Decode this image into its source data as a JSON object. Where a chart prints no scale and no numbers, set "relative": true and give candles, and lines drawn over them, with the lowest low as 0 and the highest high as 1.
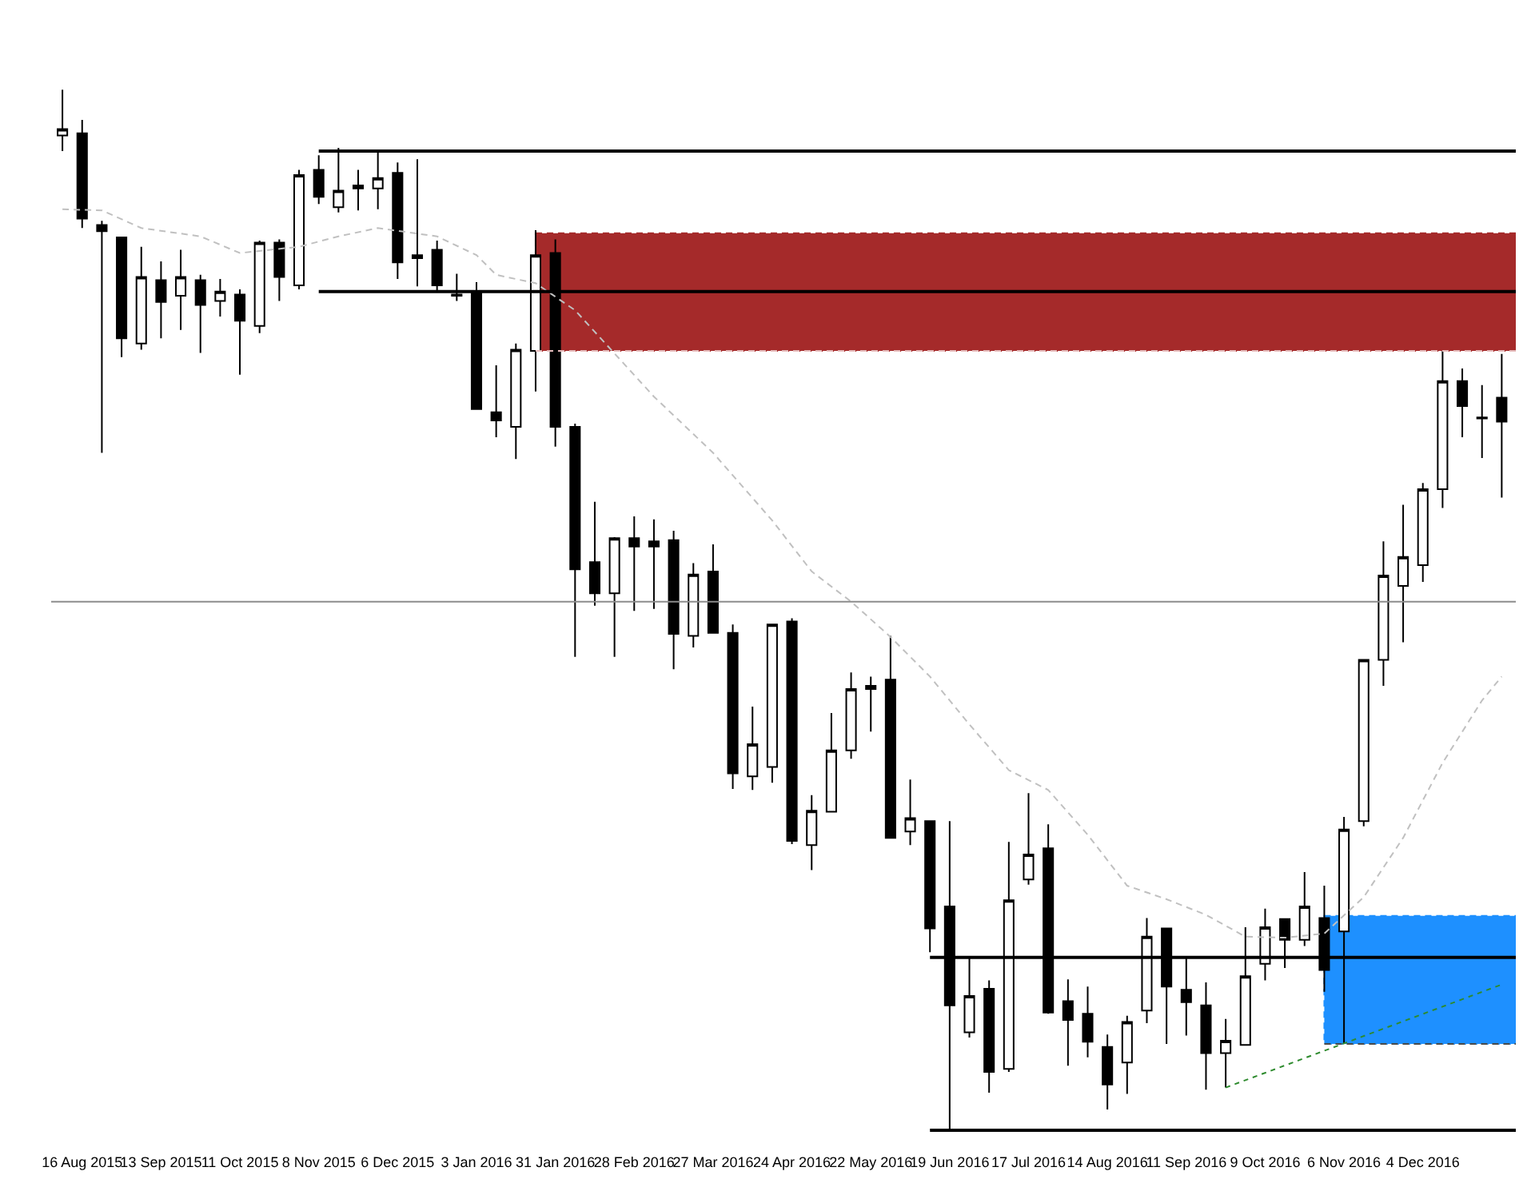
{
  "chart_data": {
    "type": "candlestick",
    "relative": true,
    "color": "#000000",
    "x": [
      "2015-08-09",
      "2015-08-16",
      "2015-08-23",
      "2015-08-30",
      "2015-09-06",
      "2015-09-13",
      "2015-09-20",
      "2015-09-27",
      "2015-10-04",
      "2015-10-11",
      "2015-10-18",
      "2015-10-25",
      "2015-11-01",
      "2015-11-08",
      "2015-11-15",
      "2015-11-22",
      "2015-11-29",
      "2015-12-06",
      "2015-12-13",
      "2015-12-20",
      "2015-12-27",
      "2016-01-03",
      "2016-01-10",
      "2016-01-17",
      "2016-01-24",
      "2016-01-31",
      "2016-02-07",
      "2016-02-14",
      "2016-02-21",
      "2016-02-28",
      "2016-03-06",
      "2016-03-13",
      "2016-03-20",
      "2016-03-27",
      "2016-04-03",
      "2016-04-10",
      "2016-04-17",
      "2016-04-24",
      "2016-05-01",
      "2016-05-08",
      "2016-05-15",
      "2016-05-22",
      "2016-05-29",
      "2016-06-05",
      "2016-06-12",
      "2016-06-19",
      "2016-06-26",
      "2016-07-03",
      "2016-07-10",
      "2016-07-17",
      "2016-07-24",
      "2016-07-31",
      "2016-08-07",
      "2016-08-14",
      "2016-08-21",
      "2016-08-28",
      "2016-09-04",
      "2016-09-11",
      "2016-09-18",
      "2016-09-25",
      "2016-10-02",
      "2016-10-09",
      "2016-10-16",
      "2016-10-23",
      "2016-10-30",
      "2016-11-06",
      "2016-11-13",
      "2016-11-20",
      "2016-11-27",
      "2016-12-04",
      "2016-12-11",
      "2016-12-18",
      "2016-12-25",
      "2017-01-01"
    ],
    "ohlc": [
      [
        0.956,
        1,
        0.941,
        0.962
      ],
      [
        0.958,
        0.971,
        0.867,
        0.876
      ],
      [
        0.87,
        0.874,
        0.651,
        0.864
      ],
      [
        0.858,
        0.858,
        0.743,
        0.761
      ],
      [
        0.756,
        0.849,
        0.75,
        0.82
      ],
      [
        0.817,
        0.835,
        0.761,
        0.796
      ],
      [
        0.802,
        0.846,
        0.769,
        0.82
      ],
      [
        0.817,
        0.822,
        0.747,
        0.793
      ],
      [
        0.797,
        0.818,
        0.782,
        0.806
      ],
      [
        0.803,
        0.808,
        0.726,
        0.778
      ],
      [
        0.773,
        0.855,
        0.766,
        0.853
      ],
      [
        0.853,
        0.856,
        0.797,
        0.82
      ],
      [
        0.812,
        0.923,
        0.808,
        0.918
      ],
      [
        0.923,
        0.937,
        0.89,
        0.897
      ],
      [
        0.887,
        0.944,
        0.882,
        0.903
      ],
      [
        0.908,
        0.923,
        0.884,
        0.905
      ],
      [
        0.905,
        0.94,
        0.885,
        0.915
      ],
      [
        0.92,
        0.93,
        0.818,
        0.834
      ],
      [
        0.841,
        0.933,
        0.811,
        0.838
      ],
      [
        0.846,
        0.855,
        0.806,
        0.812
      ],
      [
        0.803,
        0.823,
        0.797,
        0.802
      ],
      [
        0.805,
        0.815,
        0.693,
        0.693
      ],
      [
        0.69,
        0.735,
        0.666,
        0.682
      ],
      [
        0.676,
        0.756,
        0.645,
        0.75
      ],
      [
        0.749,
        0.865,
        0.71,
        0.841
      ],
      [
        0.843,
        0.856,
        0.657,
        0.676
      ],
      [
        0.676,
        0.679,
        0.455,
        0.539
      ],
      [
        0.546,
        0.604,
        0.504,
        0.516
      ],
      [
        0.516,
        0.57,
        0.455,
        0.569
      ],
      [
        0.569,
        0.59,
        0.499,
        0.561
      ],
      [
        0.566,
        0.587,
        0.501,
        0.561
      ],
      [
        0.567,
        0.576,
        0.443,
        0.477
      ],
      [
        0.475,
        0.545,
        0.464,
        0.534
      ],
      [
        0.537,
        0.563,
        0.478,
        0.478
      ],
      [
        0.478,
        0.486,
        0.328,
        0.343
      ],
      [
        0.34,
        0.407,
        0.327,
        0.371
      ],
      [
        0.349,
        0.486,
        0.334,
        0.486
      ],
      [
        0.489,
        0.492,
        0.275,
        0.278
      ],
      [
        0.274,
        0.322,
        0.25,
        0.307
      ],
      [
        0.306,
        0.401,
        0.306,
        0.365
      ],
      [
        0.365,
        0.44,
        0.357,
        0.424
      ],
      [
        0.424,
        0.436,
        0.383,
        0.427
      ],
      [
        0.433,
        0.475,
        0.281,
        0.281
      ],
      [
        0.287,
        0.337,
        0.274,
        0.3
      ],
      [
        0.297,
        0.297,
        0.171,
        0.194
      ],
      [
        0.215,
        0.297,
        0,
        0.12
      ],
      [
        0.094,
        0.166,
        0.089,
        0.129
      ],
      [
        0.136,
        0.144,
        0.036,
        0.056
      ],
      [
        0.059,
        0.277,
        0.056,
        0.221
      ],
      [
        0.241,
        0.324,
        0.236,
        0.265
      ],
      [
        0.271,
        0.294,
        0.112,
        0.113
      ],
      [
        0.124,
        0.145,
        0.062,
        0.106
      ],
      [
        0.112,
        0.138,
        0.07,
        0.085
      ],
      [
        0.08,
        0.092,
        0.02,
        0.044
      ],
      [
        0.065,
        0.11,
        0.035,
        0.104
      ],
      [
        0.115,
        0.204,
        0.103,
        0.186
      ],
      [
        0.194,
        0.194,
        0.083,
        0.138
      ],
      [
        0.135,
        0.166,
        0.091,
        0.123
      ],
      [
        0.12,
        0.142,
        0.039,
        0.074
      ],
      [
        0.074,
        0.107,
        0.041,
        0.086
      ],
      [
        0.082,
        0.195,
        0.082,
        0.148
      ],
      [
        0.16,
        0.213,
        0.144,
        0.195
      ],
      [
        0.203,
        0.203,
        0.156,
        0.183
      ],
      [
        0.183,
        0.248,
        0.177,
        0.215
      ],
      [
        0.204,
        0.235,
        0.133,
        0.154
      ],
      [
        0.191,
        0.301,
        0.083,
        0.289
      ],
      [
        0.297,
        0.452,
        0.292,
        0.452
      ],
      [
        0.452,
        0.566,
        0.427,
        0.533
      ],
      [
        0.523,
        0.601,
        0.469,
        0.551
      ],
      [
        0.543,
        0.622,
        0.527,
        0.616
      ],
      [
        0.616,
        0.749,
        0.598,
        0.72
      ],
      [
        0.72,
        0.732,
        0.666,
        0.696
      ],
      [
        0.685,
        0.716,
        0.646,
        0.684
      ],
      [
        0.704,
        0.746,
        0.608,
        0.681
      ]
    ],
    "xlim": [
      "2015-08-05",
      "2017-01-06"
    ],
    "tick_labels": "x",
    "xticks": [
      {
        "value": "2015-08-16",
        "label": "16 Aug 2015"
      },
      {
        "value": "2015-09-13",
        "label": "13 Sep 2015"
      },
      {
        "value": "2015-10-11",
        "label": "11 Oct 2015"
      },
      {
        "value": "2015-11-08",
        "label": "8 Nov 2015"
      },
      {
        "value": "2015-12-06",
        "label": "6 Dec 2015"
      },
      {
        "value": "2016-01-03",
        "label": "3 Jan 2016"
      },
      {
        "value": "2016-01-31",
        "label": "31 Jan 2016"
      },
      {
        "value": "2016-02-28",
        "label": "28 Feb 2016"
      },
      {
        "value": "2016-03-27",
        "label": "27 Mar 2016"
      },
      {
        "value": "2016-04-24",
        "label": "24 Apr 2016"
      },
      {
        "value": "2016-05-22",
        "label": "22 May 2016"
      },
      {
        "value": "2016-06-19",
        "label": "19 Jun 2016"
      },
      {
        "value": "2016-07-17",
        "label": "17 Jul 2016"
      },
      {
        "value": "2016-08-14",
        "label": "14 Aug 2016"
      },
      {
        "value": "2016-09-11",
        "label": "11 Sep 2016"
      },
      {
        "value": "2016-10-09",
        "label": "9 Oct 2016"
      },
      {
        "value": "2016-11-06",
        "label": "6 Nov 2016"
      },
      {
        "value": "2016-12-04",
        "label": "4 Dec 2016"
      }
    ],
    "series": [
      {
        "type": "line",
        "x": [
          "2016-01-24",
          "2017-01-06"
        ],
        "values": [
          0.749,
          0.749
        ],
        "color": "#e6bcbc",
        "line_style": "dashed"
      },
      {
        "type": "area",
        "x": [
          "2016-01-24",
          "2017-01-06"
        ],
        "values": [
          0.862,
          0.862
        ],
        "color": "#a52a2a",
        "line_style": "dashed"
      },
      {
        "type": "line",
        "x": [
          "2016-10-30",
          "2017-01-06"
        ],
        "values": [
          0.083,
          0.083
        ],
        "color": "#4a4a4a",
        "line_style": "dashed"
      },
      {
        "type": "area",
        "x": [
          "2016-10-30",
          "2017-01-06"
        ],
        "values": [
          0.206,
          0.206
        ],
        "color": "#1e90ff",
        "line_style": "dashed"
      },
      {
        "type": "line",
        "x": [
          "2015-08-09",
          "2015-08-23",
          "2015-09-06",
          "2015-09-27",
          "2015-10-11",
          "2015-11-01",
          "2015-11-15",
          "2015-11-29",
          "2015-12-20",
          "2016-01-03",
          "2016-01-10",
          "2016-01-24",
          "2016-02-07",
          "2016-03-06",
          "2016-03-27",
          "2016-04-17",
          "2016-05-01",
          "2016-05-15",
          "2016-05-29",
          "2016-06-12",
          "2016-06-26",
          "2016-07-10",
          "2016-07-24",
          "2016-08-07",
          "2016-08-21",
          "2016-09-04",
          "2016-09-18",
          "2016-10-02",
          "2016-10-16",
          "2016-10-30",
          "2016-11-13",
          "2016-11-27",
          "2016-12-11",
          "2016-12-25",
          "2017-01-01"
        ],
        "values": [
          0.885,
          0.884,
          0.867,
          0.859,
          0.843,
          0.849,
          0.859,
          0.867,
          0.859,
          0.841,
          0.822,
          0.814,
          0.788,
          0.705,
          0.651,
          0.586,
          0.537,
          0.508,
          0.474,
          0.436,
          0.39,
          0.346,
          0.327,
          0.284,
          0.235,
          0.222,
          0.207,
          0.186,
          0.185,
          0.189,
          0.224,
          0.281,
          0.353,
          0.413,
          0.436
        ],
        "color": "#c0c0c0",
        "line_style": "dashed"
      },
      {
        "type": "line",
        "x": [
          "2015-11-08",
          "2017-01-06"
        ],
        "values": [
          0.941,
          0.941
        ],
        "color": "#000000",
        "line_style": "solid"
      },
      {
        "type": "line",
        "x": [
          "2015-11-08",
          "2017-01-06"
        ],
        "values": [
          0.806,
          0.806
        ],
        "color": "#000000",
        "line_style": "solid"
      },
      {
        "type": "line",
        "x": [
          "2016-06-12",
          "2017-01-06"
        ],
        "values": [
          0.166,
          0.166
        ],
        "color": "#000000",
        "line_style": "solid"
      },
      {
        "type": "line",
        "x": [
          "2016-06-12",
          "2017-01-06"
        ],
        "values": [
          0,
          0
        ],
        "color": "#000000",
        "line_style": "solid"
      },
      {
        "type": "line",
        "x": [
          "2016-09-25",
          "2017-01-01"
        ],
        "values": [
          0.041,
          0.14
        ],
        "color": "#2e8b2e",
        "line_style": "dotted"
      }
    ],
    "ref_lines": [
      {
        "axis": "y",
        "value": 0.508,
        "color": "#8c8c8c"
      }
    ]
  }
}
